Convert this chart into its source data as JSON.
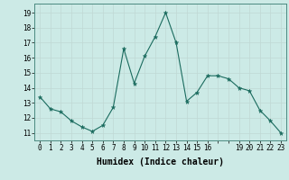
{
  "x": [
    0,
    1,
    2,
    3,
    4,
    5,
    6,
    7,
    8,
    9,
    10,
    11,
    12,
    13,
    14,
    15,
    16,
    17,
    18,
    19,
    20,
    21,
    22,
    23
  ],
  "y": [
    13.4,
    12.6,
    12.4,
    11.8,
    11.4,
    11.1,
    11.5,
    12.7,
    16.6,
    14.3,
    16.1,
    17.4,
    19.0,
    17.0,
    13.1,
    13.7,
    14.8,
    14.8,
    14.6,
    14.0,
    13.8,
    12.5,
    11.8,
    11.0
  ],
  "line_color": "#1a6b5e",
  "marker": "*",
  "marker_color": "#1a6b5e",
  "bg_color": "#cceae6",
  "grid_color": "#c0d8d4",
  "xlabel": "Humidex (Indice chaleur)",
  "ylabel_ticks": [
    11,
    12,
    13,
    14,
    15,
    16,
    17,
    18,
    19
  ],
  "xlim": [
    -0.5,
    23.5
  ],
  "ylim": [
    10.5,
    19.6
  ],
  "tick_fontsize": 5.5,
  "label_fontsize": 7.0
}
